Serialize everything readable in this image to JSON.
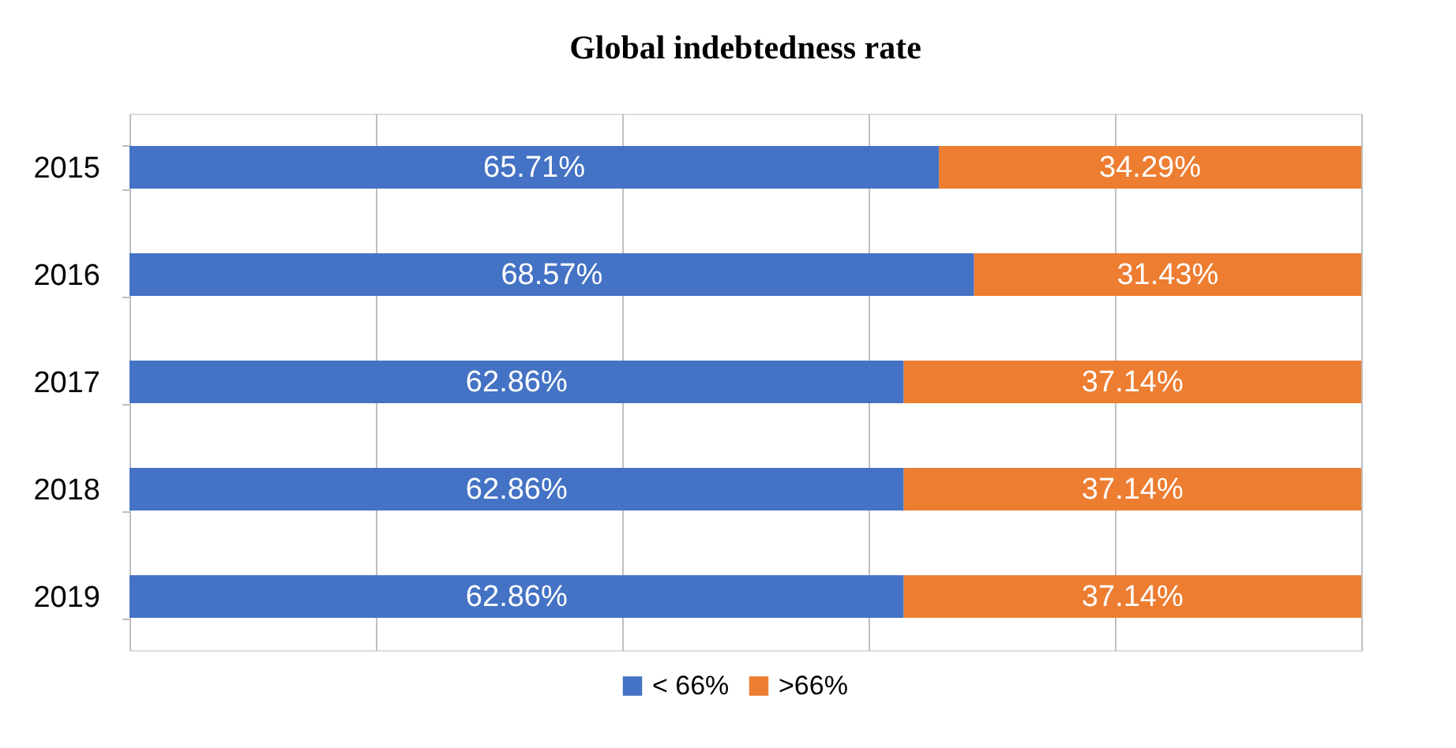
{
  "chart_data": {
    "type": "bar",
    "title": "Global indebtedness rate",
    "orientation": "horizontal",
    "stacked": true,
    "categories": [
      "2015",
      "2016",
      "2017",
      "2018",
      "2019"
    ],
    "series": [
      {
        "name": "< 66%",
        "color": "#4472c4",
        "values": [
          65.71,
          68.57,
          62.86,
          62.86,
          62.86
        ],
        "value_labels": [
          "65.71%",
          "68.57%",
          "62.86%",
          "62.86%",
          "62.86%"
        ]
      },
      {
        "name": ">66%",
        "color": "#ed7d31",
        "values": [
          34.29,
          31.43,
          37.14,
          37.14,
          37.14
        ],
        "value_labels": [
          "34.29%",
          "31.43%",
          "37.14%",
          "37.14%",
          "37.14%"
        ]
      }
    ],
    "xlim": [
      0,
      100
    ],
    "xticks": [
      {
        "value": 0,
        "label": null
      },
      {
        "value": 20,
        "label": null
      },
      {
        "value": 40,
        "label": null
      },
      {
        "value": 60,
        "label": null
      },
      {
        "value": 80,
        "label": null
      },
      {
        "value": 100,
        "label": null
      }
    ],
    "grid": "x",
    "legend": "bottom",
    "tick_labels": "y"
  }
}
